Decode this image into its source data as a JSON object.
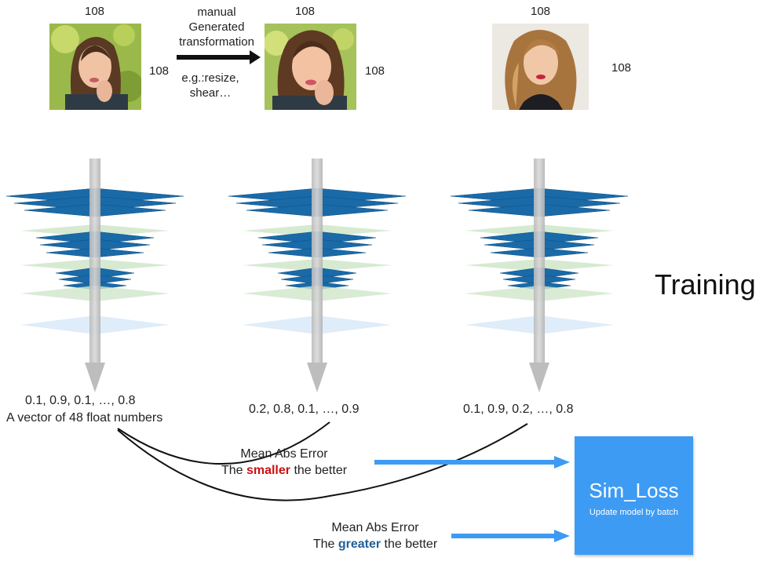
{
  "inputs": [
    {
      "top_size": "108",
      "side_size": "108"
    },
    {
      "top_size": "108",
      "side_size": "108"
    },
    {
      "top_size": "108",
      "side_size": "108"
    }
  ],
  "transform_note": {
    "line1": "manual",
    "line2": "Generated",
    "line3": "transformation",
    "line4": "e.g.:resize,",
    "line5": "shear…"
  },
  "outputs": {
    "vector1": "0.1,  0.9,  0.1,  …,  0.8",
    "vector1_caption": "A vector of 48 float numbers",
    "vector2": "0.2,  0.8,  0.1,  …,  0.9",
    "vector3": "0.1,  0.9,  0.2,  …,  0.8"
  },
  "training_label": "Training",
  "loss_small": {
    "line1": "Mean Abs Error",
    "prefix": "The ",
    "emph": "smaller",
    "suffix": " the better"
  },
  "loss_great": {
    "line1": "Mean Abs Error",
    "prefix": "The ",
    "emph": "greater",
    "suffix": " the better"
  },
  "sim_loss": {
    "title": "Sim_Loss",
    "subtitle": "Update model by batch"
  },
  "colors": {
    "layer_blue": "#1a6aa8",
    "layer_green": "#cfe6c9",
    "layer_light": "#dbeaf9",
    "box": "#3d9bf3",
    "red": "#cc1111",
    "blue_text": "#1f5f99"
  }
}
